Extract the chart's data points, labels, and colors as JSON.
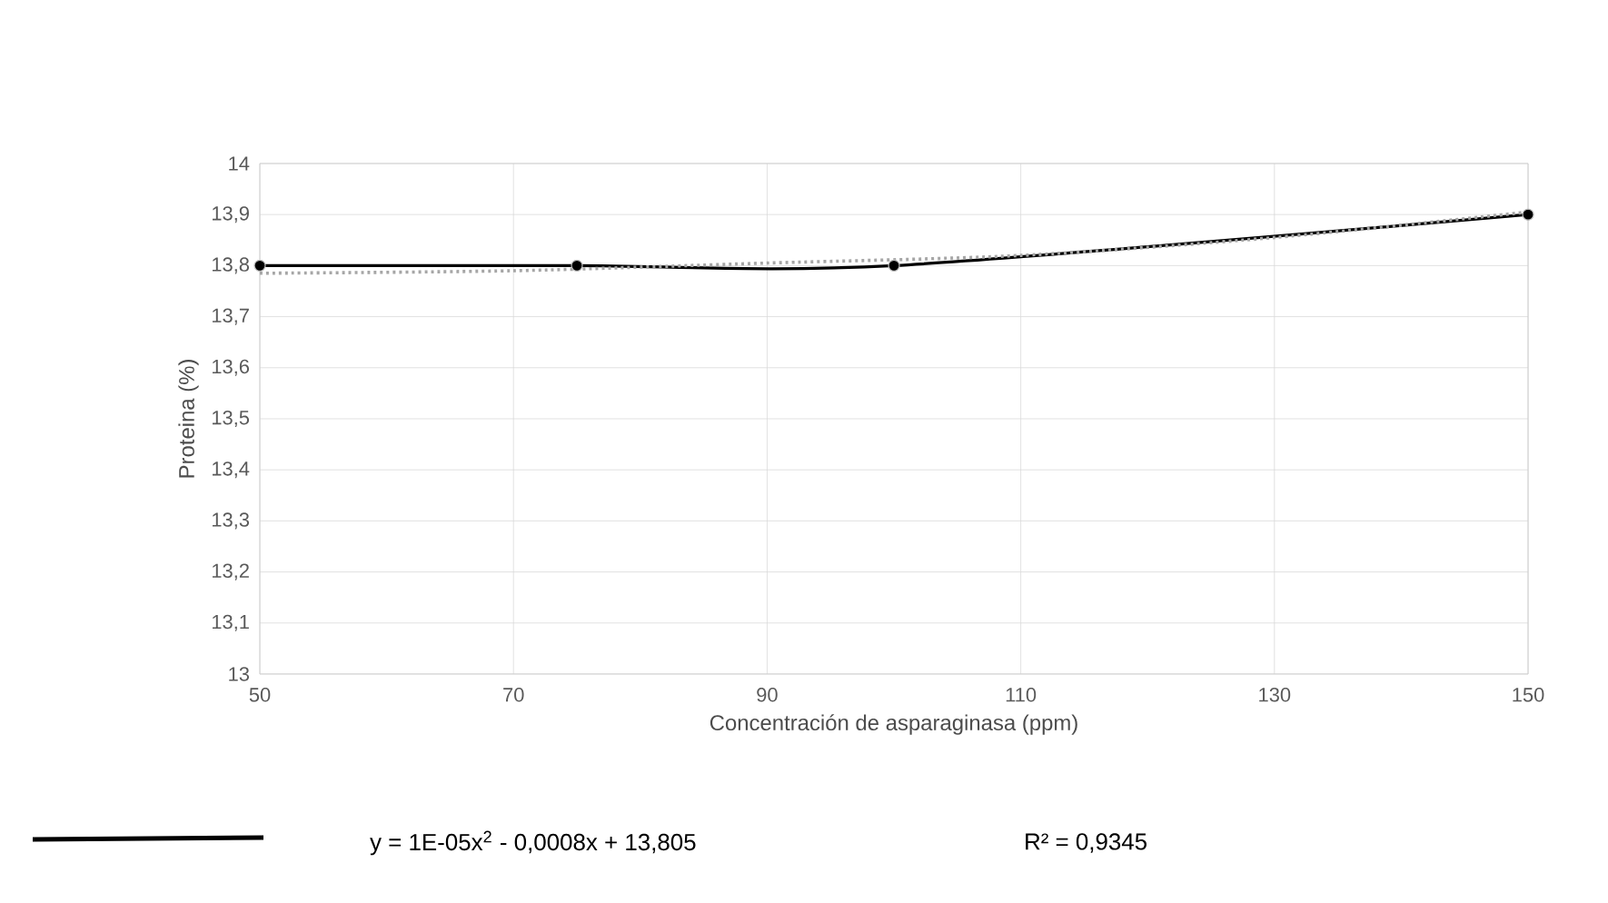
{
  "chart_data": {
    "type": "line",
    "xlabel": "Concentración de asparaginasa (ppm)",
    "ylabel": "Proteina (%)",
    "xlim": [
      50,
      150
    ],
    "xticks": [
      50,
      70,
      90,
      110,
      130,
      150
    ],
    "ylim": [
      13,
      14
    ],
    "yticks": [
      13,
      {
        "value": 13.1,
        "label": "13,1"
      },
      {
        "value": 13.2,
        "label": "13,2"
      },
      {
        "value": 13.3,
        "label": "13,3"
      },
      {
        "value": 13.4,
        "label": "13,4"
      },
      {
        "value": 13.5,
        "label": "13,5"
      },
      {
        "value": 13.6,
        "label": "13,6"
      },
      {
        "value": 13.7,
        "label": "13,7"
      },
      {
        "value": 13.8,
        "label": "13,8"
      },
      {
        "value": 13.9,
        "label": "13,9"
      },
      14
    ],
    "grid": true,
    "marker": "circle",
    "series": [
      {
        "color": "#000000",
        "x": [
          50,
          75,
          100,
          150
        ],
        "values": [
          13.8,
          13.8,
          13.8,
          13.9
        ]
      },
      {
        "type": "line",
        "color": "#a6a6a6",
        "line_style": "dotted",
        "marker": "none",
        "x": [
          50,
          70,
          90,
          110,
          130,
          150
        ],
        "values": [
          13.785,
          13.79,
          13.805,
          13.82,
          13.855,
          13.905
        ]
      }
    ],
    "annotations": [
      "y = 1E-05x$^{2}$ - 0,0008x + 13,805",
      "R² = 0,9345"
    ]
  }
}
